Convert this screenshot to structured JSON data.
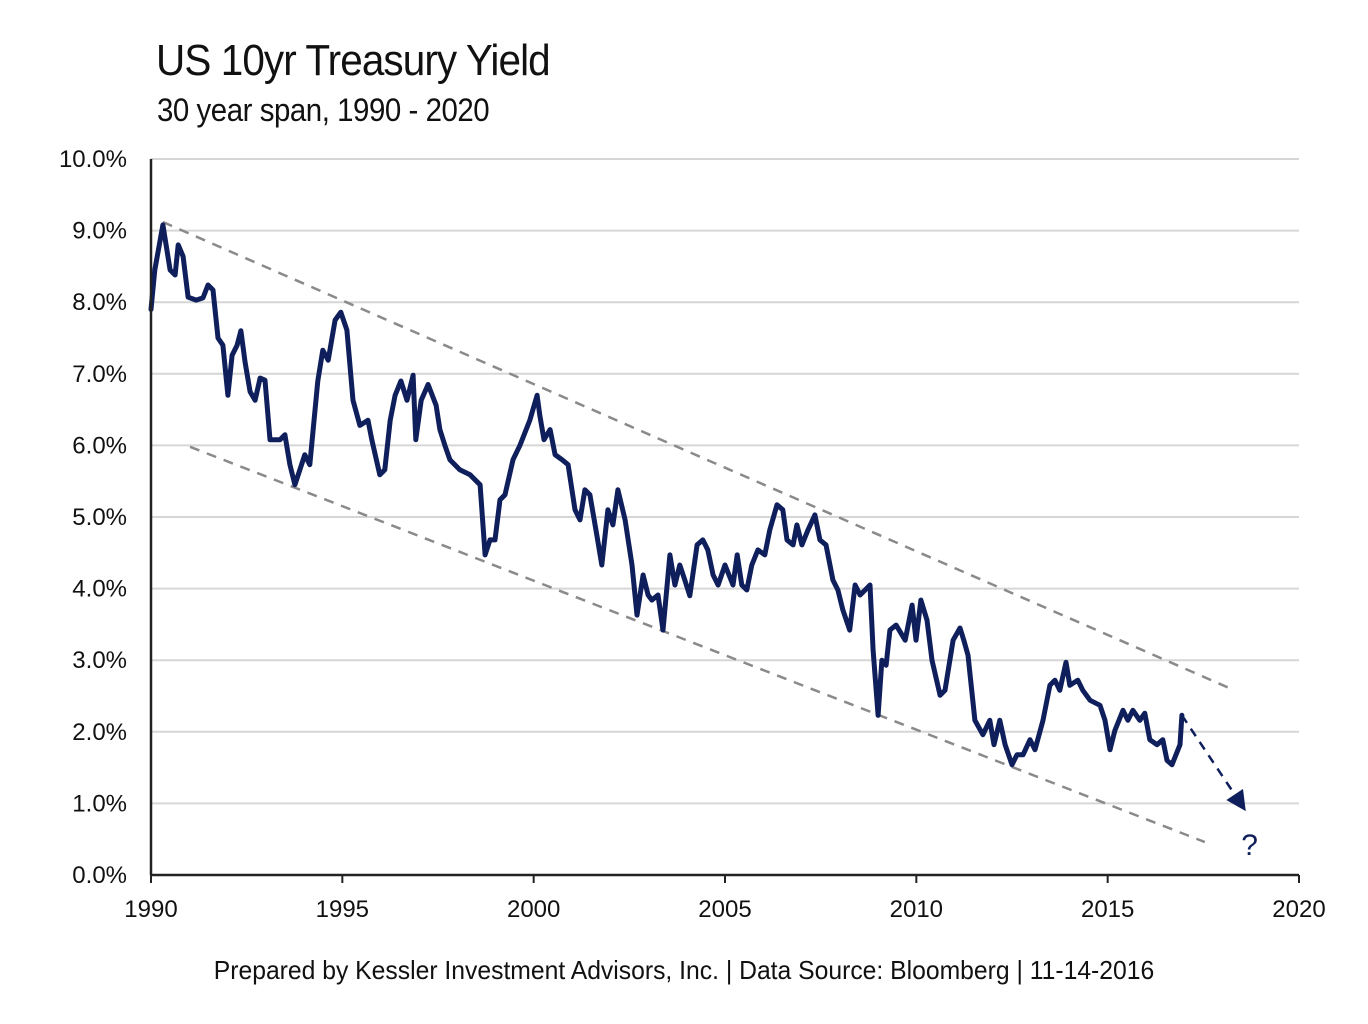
{
  "chart_data": {
    "type": "line",
    "title": "US 10yr Treasury Yield",
    "subtitle": "30 year span, 1990 - 2020",
    "xlabel": "",
    "ylabel": "",
    "xlim": [
      1990,
      2020
    ],
    "ylim": [
      0,
      10
    ],
    "x_ticks": [
      "1990",
      "1995",
      "2000",
      "2005",
      "2010",
      "2015",
      "2020"
    ],
    "y_ticks": [
      "0.0%",
      "1.0%",
      "2.0%",
      "3.0%",
      "4.0%",
      "5.0%",
      "6.0%",
      "7.0%",
      "8.0%",
      "9.0%",
      "10.0%"
    ],
    "grid": "horizontal",
    "series_color": "#0f1f5c",
    "series": [
      {
        "name": "US 10yr Treasury Yield (%)",
        "points": [
          [
            1990.0,
            7.9
          ],
          [
            1990.1,
            8.45
          ],
          [
            1990.31,
            9.08
          ],
          [
            1990.5,
            8.45
          ],
          [
            1990.63,
            8.38
          ],
          [
            1990.71,
            8.8
          ],
          [
            1990.84,
            8.64
          ],
          [
            1990.97,
            8.07
          ],
          [
            1991.18,
            8.03
          ],
          [
            1991.36,
            8.06
          ],
          [
            1991.49,
            8.24
          ],
          [
            1991.62,
            8.17
          ],
          [
            1991.75,
            7.5
          ],
          [
            1991.88,
            7.4
          ],
          [
            1992.01,
            6.7
          ],
          [
            1992.12,
            7.26
          ],
          [
            1992.25,
            7.4
          ],
          [
            1992.35,
            7.6
          ],
          [
            1992.46,
            7.16
          ],
          [
            1992.59,
            6.75
          ],
          [
            1992.72,
            6.63
          ],
          [
            1992.85,
            6.94
          ],
          [
            1992.98,
            6.91
          ],
          [
            1993.11,
            6.08
          ],
          [
            1993.37,
            6.08
          ],
          [
            1993.5,
            6.15
          ],
          [
            1993.63,
            5.73
          ],
          [
            1993.76,
            5.45
          ],
          [
            1993.89,
            5.66
          ],
          [
            1994.02,
            5.87
          ],
          [
            1994.15,
            5.73
          ],
          [
            1994.36,
            6.9
          ],
          [
            1994.49,
            7.33
          ],
          [
            1994.63,
            7.19
          ],
          [
            1994.81,
            7.75
          ],
          [
            1994.96,
            7.86
          ],
          [
            1995.12,
            7.61
          ],
          [
            1995.28,
            6.63
          ],
          [
            1995.46,
            6.28
          ],
          [
            1995.67,
            6.35
          ],
          [
            1995.77,
            6.08
          ],
          [
            1995.98,
            5.59
          ],
          [
            1996.11,
            5.66
          ],
          [
            1996.25,
            6.35
          ],
          [
            1996.38,
            6.7
          ],
          [
            1996.53,
            6.9
          ],
          [
            1996.69,
            6.63
          ],
          [
            1996.85,
            6.98
          ],
          [
            1996.92,
            6.08
          ],
          [
            1997.06,
            6.63
          ],
          [
            1997.24,
            6.85
          ],
          [
            1997.45,
            6.56
          ],
          [
            1997.55,
            6.22
          ],
          [
            1997.68,
            6.0
          ],
          [
            1997.81,
            5.8
          ],
          [
            1998.07,
            5.66
          ],
          [
            1998.34,
            5.59
          ],
          [
            1998.6,
            5.45
          ],
          [
            1998.73,
            4.47
          ],
          [
            1998.86,
            4.68
          ],
          [
            1998.99,
            4.68
          ],
          [
            1999.12,
            5.24
          ],
          [
            1999.25,
            5.31
          ],
          [
            1999.46,
            5.8
          ],
          [
            1999.64,
            6.0
          ],
          [
            1999.9,
            6.35
          ],
          [
            2000.09,
            6.7
          ],
          [
            2000.16,
            6.42
          ],
          [
            2000.27,
            6.08
          ],
          [
            2000.43,
            6.22
          ],
          [
            2000.56,
            5.87
          ],
          [
            2000.74,
            5.8
          ],
          [
            2000.9,
            5.73
          ],
          [
            2001.08,
            5.1
          ],
          [
            2001.21,
            4.96
          ],
          [
            2001.34,
            5.38
          ],
          [
            2001.47,
            5.31
          ],
          [
            2001.65,
            4.75
          ],
          [
            2001.78,
            4.33
          ],
          [
            2001.94,
            5.1
          ],
          [
            2002.07,
            4.89
          ],
          [
            2002.2,
            5.38
          ],
          [
            2002.39,
            4.96
          ],
          [
            2002.57,
            4.33
          ],
          [
            2002.7,
            3.63
          ],
          [
            2002.86,
            4.19
          ],
          [
            2002.99,
            3.91
          ],
          [
            2003.09,
            3.84
          ],
          [
            2003.25,
            3.91
          ],
          [
            2003.38,
            3.42
          ],
          [
            2003.56,
            4.47
          ],
          [
            2003.69,
            4.05
          ],
          [
            2003.82,
            4.33
          ],
          [
            2003.95,
            4.12
          ],
          [
            2004.08,
            3.9
          ],
          [
            2004.27,
            4.61
          ],
          [
            2004.42,
            4.68
          ],
          [
            2004.55,
            4.54
          ],
          [
            2004.69,
            4.19
          ],
          [
            2004.82,
            4.05
          ],
          [
            2005.0,
            4.33
          ],
          [
            2005.21,
            4.05
          ],
          [
            2005.32,
            4.47
          ],
          [
            2005.44,
            4.05
          ],
          [
            2005.57,
            3.98
          ],
          [
            2005.7,
            4.33
          ],
          [
            2005.86,
            4.54
          ],
          [
            2006.04,
            4.47
          ],
          [
            2006.17,
            4.82
          ],
          [
            2006.36,
            5.17
          ],
          [
            2006.51,
            5.1
          ],
          [
            2006.62,
            4.68
          ],
          [
            2006.78,
            4.61
          ],
          [
            2006.88,
            4.89
          ],
          [
            2007.01,
            4.61
          ],
          [
            2007.17,
            4.82
          ],
          [
            2007.35,
            5.03
          ],
          [
            2007.48,
            4.68
          ],
          [
            2007.64,
            4.61
          ],
          [
            2007.82,
            4.12
          ],
          [
            2007.95,
            3.98
          ],
          [
            2008.08,
            3.7
          ],
          [
            2008.26,
            3.42
          ],
          [
            2008.4,
            4.05
          ],
          [
            2008.53,
            3.91
          ],
          [
            2008.66,
            3.98
          ],
          [
            2008.79,
            4.05
          ],
          [
            2008.87,
            3.14
          ],
          [
            2009.0,
            2.23
          ],
          [
            2009.1,
            3.0
          ],
          [
            2009.21,
            2.93
          ],
          [
            2009.31,
            3.42
          ],
          [
            2009.47,
            3.49
          ],
          [
            2009.71,
            3.28
          ],
          [
            2009.89,
            3.77
          ],
          [
            2009.99,
            3.28
          ],
          [
            2010.12,
            3.84
          ],
          [
            2010.28,
            3.56
          ],
          [
            2010.41,
            3.0
          ],
          [
            2010.62,
            2.51
          ],
          [
            2010.75,
            2.58
          ],
          [
            2010.96,
            3.28
          ],
          [
            2011.14,
            3.45
          ],
          [
            2011.24,
            3.28
          ],
          [
            2011.35,
            3.07
          ],
          [
            2011.53,
            2.16
          ],
          [
            2011.74,
            1.96
          ],
          [
            2011.92,
            2.16
          ],
          [
            2012.03,
            1.82
          ],
          [
            2012.18,
            2.16
          ],
          [
            2012.32,
            1.82
          ],
          [
            2012.5,
            1.54
          ],
          [
            2012.63,
            1.68
          ],
          [
            2012.79,
            1.68
          ],
          [
            2012.97,
            1.89
          ],
          [
            2013.1,
            1.75
          ],
          [
            2013.31,
            2.16
          ],
          [
            2013.49,
            2.65
          ],
          [
            2013.62,
            2.72
          ],
          [
            2013.75,
            2.58
          ],
          [
            2013.91,
            2.97
          ],
          [
            2014.01,
            2.65
          ],
          [
            2014.22,
            2.72
          ],
          [
            2014.35,
            2.58
          ],
          [
            2014.54,
            2.44
          ],
          [
            2014.8,
            2.37
          ],
          [
            2014.93,
            2.16
          ],
          [
            2015.06,
            1.75
          ],
          [
            2015.19,
            2.02
          ],
          [
            2015.4,
            2.3
          ],
          [
            2015.53,
            2.16
          ],
          [
            2015.66,
            2.3
          ],
          [
            2015.84,
            2.16
          ],
          [
            2015.97,
            2.26
          ],
          [
            2016.1,
            1.89
          ],
          [
            2016.29,
            1.82
          ],
          [
            2016.44,
            1.89
          ],
          [
            2016.55,
            1.6
          ],
          [
            2016.68,
            1.54
          ],
          [
            2016.89,
            1.82
          ],
          [
            2016.94,
            2.23
          ]
        ]
      }
    ],
    "trend_lines": [
      {
        "name": "upper-channel",
        "from": [
          1990.31,
          9.12
        ],
        "to": [
          2018.14,
          2.62
        ],
        "style": "dashed",
        "color": "#8a8a8a"
      },
      {
        "name": "lower-channel",
        "from": [
          1991.02,
          5.98
        ],
        "to": [
          2017.54,
          0.46
        ],
        "style": "dashed",
        "color": "#8a8a8a"
      }
    ],
    "projection_arrow": {
      "from": [
        2016.94,
        2.23
      ],
      "to": [
        2018.5,
        0.98
      ],
      "label": "?"
    },
    "legend": "none"
  },
  "footer": "Prepared by Kessler Investment  Advisors, Inc. | Data Source: Bloomberg | 11-14-2016"
}
